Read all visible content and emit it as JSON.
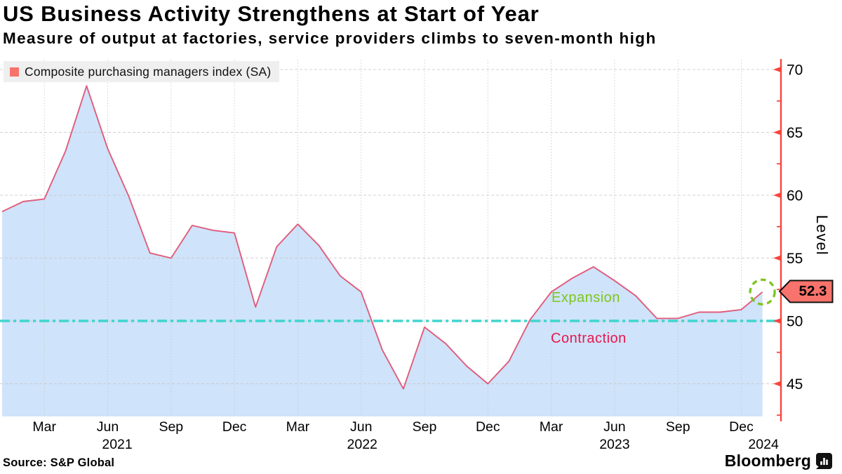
{
  "header": {
    "title": "US Business Activity Strengthens at Start of Year",
    "subtitle": "Measure of output at factories, service providers climbs to seven-month high"
  },
  "legend": {
    "label": "Composite purchasing managers index (SA)"
  },
  "annotations": {
    "expansion": "Expansion",
    "contraction": "Contraction"
  },
  "footer": {
    "source": "Source: S&P Global",
    "brand": "Bloomberg"
  },
  "chart_data": {
    "type": "area",
    "title": "Composite purchasing managers index (SA)",
    "ylabel": "Level",
    "x": [
      "2021-01",
      "2021-02",
      "2021-03",
      "2021-04",
      "2021-05",
      "2021-06",
      "2021-07",
      "2021-08",
      "2021-09",
      "2021-10",
      "2021-11",
      "2021-12",
      "2022-01",
      "2022-02",
      "2022-03",
      "2022-04",
      "2022-05",
      "2022-06",
      "2022-07",
      "2022-08",
      "2022-09",
      "2022-10",
      "2022-11",
      "2022-12",
      "2023-01",
      "2023-02",
      "2023-03",
      "2023-04",
      "2023-05",
      "2023-06",
      "2023-07",
      "2023-08",
      "2023-09",
      "2023-10",
      "2023-11",
      "2023-12",
      "2024-01"
    ],
    "values": [
      58.7,
      59.5,
      59.7,
      63.5,
      68.7,
      63.7,
      59.9,
      55.4,
      55.0,
      57.6,
      57.2,
      57.0,
      51.1,
      55.9,
      57.7,
      56.0,
      53.6,
      52.3,
      47.7,
      44.6,
      49.5,
      48.2,
      46.4,
      45.0,
      46.8,
      50.1,
      52.3,
      53.4,
      54.3,
      53.2,
      52.0,
      50.2,
      50.2,
      50.7,
      50.7,
      50.9,
      52.3
    ],
    "x_ticks": [
      {
        "label": "Mar",
        "month_index": 2
      },
      {
        "label": "Jun",
        "month_index": 5
      },
      {
        "label": "Sep",
        "month_index": 8
      },
      {
        "label": "Dec",
        "month_index": 11
      },
      {
        "label": "Mar",
        "month_index": 14
      },
      {
        "label": "Jun",
        "month_index": 17
      },
      {
        "label": "Sep",
        "month_index": 20
      },
      {
        "label": "Dec",
        "month_index": 23
      },
      {
        "label": "Mar",
        "month_index": 26
      },
      {
        "label": "Jun",
        "month_index": 29
      },
      {
        "label": "Sep",
        "month_index": 32
      },
      {
        "label": "Dec",
        "month_index": 35
      }
    ],
    "year_labels": [
      {
        "label": "2021",
        "month_pos": 5.45
      },
      {
        "label": "2022",
        "month_pos": 17.05
      },
      {
        "label": "2023",
        "month_pos": 29.0
      },
      {
        "label": "2024",
        "month_pos": 36.05
      }
    ],
    "y_ticks": [
      45,
      50,
      55,
      60,
      65,
      70
    ],
    "y_minor_ticks": [
      42.5,
      47.5,
      52.5,
      57.5,
      62.5,
      67.5
    ],
    "ylim": [
      42.4,
      71.0
    ],
    "grid": true,
    "legend_position": "top-left",
    "baseline": {
      "value": 50,
      "above_label": "Expansion",
      "below_label": "Contraction"
    },
    "last_point": {
      "x": "2024-01",
      "value": 52.3,
      "label": "52.3"
    },
    "colors": {
      "line": "#e05c7c",
      "fill": "#cfe3fa",
      "baseline": "#3fd6cf",
      "axis": "#f8453c",
      "grid": "#c9c9c9",
      "badge_fill": "#f8736c",
      "legend_swatch": "#f7726b",
      "expansion": "#7dc51d",
      "contraction": "#e8174e",
      "highlight_circle": "#7dc51d"
    }
  }
}
